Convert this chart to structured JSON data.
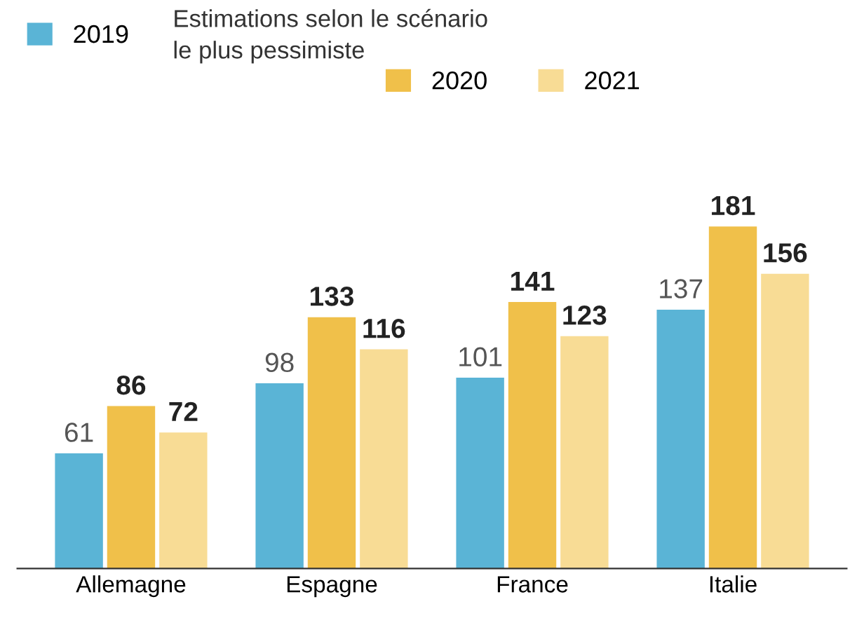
{
  "chart_data": {
    "type": "bar",
    "categories": [
      "Allemagne",
      "Espagne",
      "France",
      "Italie"
    ],
    "series": [
      {
        "name": "2019",
        "color": "#5ab4d6",
        "values": [
          61,
          98,
          101,
          137
        ]
      },
      {
        "name": "2020",
        "color": "#f0c04a",
        "values": [
          86,
          133,
          141,
          181
        ]
      },
      {
        "name": "2021",
        "color": "#f8dc95",
        "values": [
          72,
          116,
          123,
          156
        ]
      }
    ],
    "annotations": [
      "Estimations selon le scénario\nle plus pessimiste"
    ],
    "data_labels": true,
    "legend": "top left",
    "grid": false
  }
}
